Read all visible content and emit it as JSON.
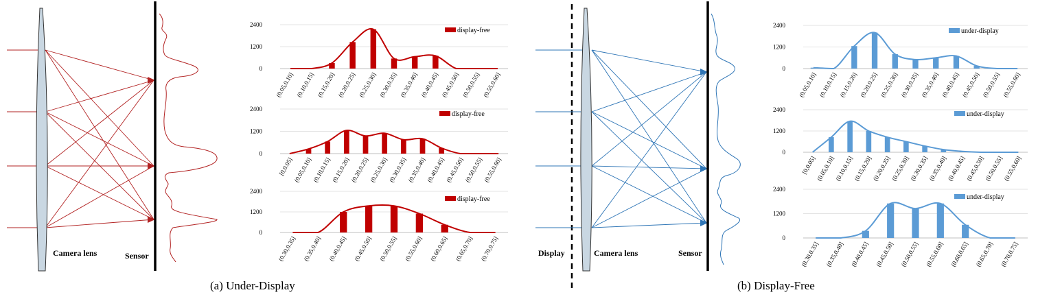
{
  "colors": {
    "left": "#c00000",
    "right": "#5b9bd5",
    "right_ray": "#2e75b6",
    "lens": "#c9d7e2"
  },
  "left_panel": {
    "camera_lens_label": "Camera lens",
    "sensor_label": "Sensor",
    "caption": "(a)  Under-Display"
  },
  "right_panel": {
    "display_label": "Display",
    "camera_lens_label": "Camera lens",
    "sensor_label": "Sensor",
    "caption": "(b)  Display-Free"
  },
  "chart_data": [
    {
      "type": "bar",
      "legend": "display-free",
      "yticks": [
        "0",
        "1200",
        "2400"
      ],
      "ylim": [
        0,
        2400
      ],
      "categories": [
        "(0.05,0.10]",
        "(0.10,0.15]",
        "(0.15,0.20]",
        "(0.20,0.25]",
        "(0.25,0.30]",
        "(0.30,0.35]",
        "(0.35,0.40]",
        "(0.40,0.45]",
        "(0.45,0.50]",
        "(0.50,0.55]",
        "(0.55,0.60]"
      ],
      "values": [
        0,
        0,
        300,
        1450,
        2150,
        550,
        650,
        700,
        0,
        0,
        0
      ]
    },
    {
      "type": "bar",
      "legend": "display-free",
      "yticks": [
        "0",
        "1200",
        "2400"
      ],
      "ylim": [
        0,
        2400
      ],
      "categories": [
        "[0,0.05]",
        "(0.05,0.10]",
        "(0.10,0.15]",
        "(0.15,0.20]",
        "(0.20,0.25]",
        "(0.25,0.30]",
        "(0.30,0.35]",
        "(0.35,0.40]",
        "(0.40,0.45]",
        "(0.45,0.50]",
        "(0.50,0.55]",
        "(0.55,0.60]"
      ],
      "values": [
        0,
        250,
        650,
        1250,
        950,
        1100,
        750,
        800,
        300,
        0,
        0,
        0
      ]
    },
    {
      "type": "bar",
      "legend": "display-free",
      "yticks": [
        "0",
        "1200",
        "2400"
      ],
      "ylim": [
        0,
        2400
      ],
      "categories": [
        "(0.30,0.35]",
        "(0.35,0.40]",
        "(0.40,0.45]",
        "(0.45,0.50]",
        "(0.50,0.55]",
        "(0.55,0.60]",
        "(0.60,0.65]",
        "(0.65,0.70]",
        "(0.70,0.75]"
      ],
      "values": [
        0,
        0,
        1200,
        1550,
        1550,
        1100,
        450,
        0,
        0
      ]
    },
    {
      "type": "bar",
      "legend": "under-display",
      "yticks": [
        "0",
        "1200",
        "2400"
      ],
      "ylim": [
        0,
        2400
      ],
      "categories": [
        "(0.05,0.10]",
        "(0.10,0.15]",
        "(0.15,0.20]",
        "(0.20,0.25]",
        "(0.25,0.30]",
        "(0.30,0.35]",
        "(0.35,0.40]",
        "(0.40,0.45]",
        "(0.45,0.50]",
        "(0.50,0.55]",
        "(0.55,0.60]"
      ],
      "values": [
        50,
        0,
        1250,
        2000,
        800,
        500,
        600,
        700,
        150,
        0,
        0
      ]
    },
    {
      "type": "bar",
      "legend": "under-display",
      "yticks": [
        "0",
        "1200",
        "2400"
      ],
      "ylim": [
        0,
        2400
      ],
      "categories": [
        "[0,0.05]",
        "(0.05,0.10]",
        "(0.10,0.15]",
        "(0.15,0.20]",
        "(0.20,0.25]",
        "(0.25,0.30]",
        "(0.30,0.35]",
        "(0.35,0.40]",
        "(0.40,0.45]",
        "(0.45,0.50]",
        "(0.50,0.55]",
        "(0.55,0.60]"
      ],
      "values": [
        0,
        850,
        1750,
        1200,
        850,
        600,
        350,
        150,
        50,
        0,
        0,
        0
      ]
    },
    {
      "type": "bar",
      "legend": "under-display",
      "yticks": [
        "0",
        "1200",
        "2400"
      ],
      "ylim": [
        0,
        2400
      ],
      "categories": [
        "(0.30,0.35]",
        "(0.35,0.40]",
        "(0.40,0.45]",
        "(0.45,0.50]",
        "(0.50,0.55]",
        "(0.55,0.60]",
        "(0.60,0.65]",
        "(0.65,0.70]",
        "(0.70,0.75]"
      ],
      "values": [
        0,
        0,
        350,
        1700,
        1450,
        1700,
        650,
        0,
        0
      ]
    }
  ]
}
